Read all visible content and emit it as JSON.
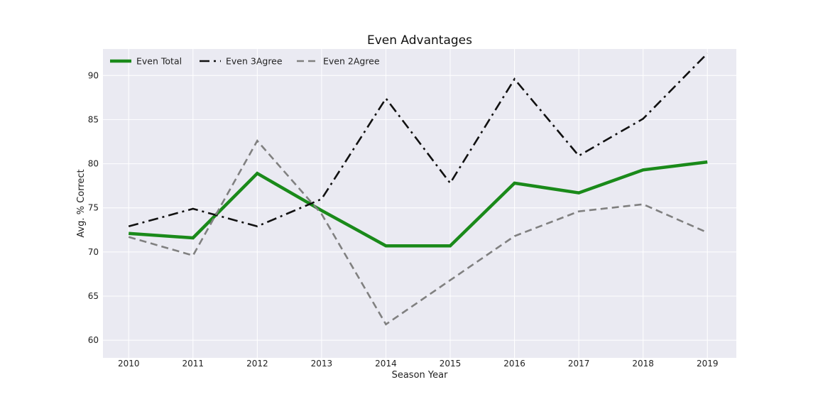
{
  "chart_data": {
    "type": "line",
    "title": "Even Advantages",
    "xlabel": "Season Year",
    "ylabel": "Avg. % Correct",
    "x": [
      2010,
      2011,
      2012,
      2013,
      2014,
      2015,
      2016,
      2017,
      2018,
      2019
    ],
    "xlim": [
      2009.6,
      2019.45
    ],
    "ylim": [
      58.0,
      93.0
    ],
    "yticks": [
      60,
      65,
      70,
      75,
      80,
      85,
      90
    ],
    "grid": true,
    "legend_position": "top-left",
    "series": [
      {
        "name": "Even Total",
        "color": "#1a8a1a",
        "style": "solid",
        "values": [
          72.1,
          71.6,
          78.9,
          74.7,
          70.7,
          70.7,
          77.8,
          76.7,
          79.3,
          80.2
        ]
      },
      {
        "name": "Even 3Agree",
        "color": "#111111",
        "style": "dashdot",
        "values": [
          72.9,
          74.9,
          72.9,
          76.0,
          87.4,
          77.8,
          89.6,
          80.9,
          85.1,
          92.5
        ]
      },
      {
        "name": "Even 2Agree",
        "color": "#808080",
        "style": "dashed",
        "values": [
          71.7,
          69.6,
          82.6,
          74.3,
          61.8,
          66.8,
          71.8,
          74.6,
          75.4,
          72.2
        ]
      }
    ]
  }
}
